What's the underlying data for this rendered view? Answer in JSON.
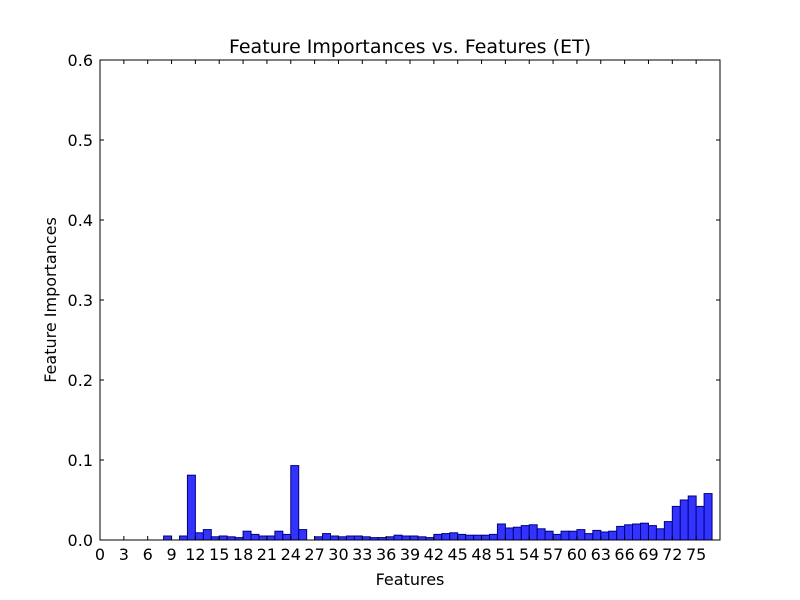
{
  "chart_data": {
    "type": "bar",
    "title": "Feature Importances vs. Features (ET)",
    "xlabel": "Features",
    "ylabel": "Feature Importances",
    "xlim": [
      0,
      78
    ],
    "ylim": [
      0,
      0.6
    ],
    "x_ticks": [
      0,
      3,
      6,
      9,
      12,
      15,
      18,
      21,
      24,
      27,
      30,
      33,
      36,
      39,
      42,
      45,
      48,
      51,
      54,
      57,
      60,
      63,
      66,
      69,
      72,
      75
    ],
    "y_ticks": [
      "0.0",
      "0.1",
      "0.2",
      "0.3",
      "0.4",
      "0.5",
      "0.6"
    ],
    "grid": false,
    "bar_color": "#3333ff",
    "bar_edge_color": "#000080",
    "values": [
      0,
      0,
      0,
      0,
      0,
      0,
      0,
      0,
      0.005,
      0,
      0.005,
      0.081,
      0.009,
      0.013,
      0.004,
      0.005,
      0.004,
      0.003,
      0.011,
      0.007,
      0.005,
      0.005,
      0.011,
      0.007,
      0.093,
      0.013,
      0,
      0.004,
      0.008,
      0.005,
      0.004,
      0.005,
      0.005,
      0.004,
      0.003,
      0.003,
      0.004,
      0.006,
      0.005,
      0.005,
      0.004,
      0.003,
      0.007,
      0.008,
      0.009,
      0.007,
      0.006,
      0.006,
      0.006,
      0.007,
      0.02,
      0.015,
      0.016,
      0.018,
      0.019,
      0.014,
      0.011,
      0.007,
      0.011,
      0.011,
      0.013,
      0.008,
      0.012,
      0.01,
      0.011,
      0.017,
      0.019,
      0.02,
      0.021,
      0.018,
      0.014,
      0.023,
      0.042,
      0.05,
      0.055,
      0.042,
      0.058
    ]
  }
}
